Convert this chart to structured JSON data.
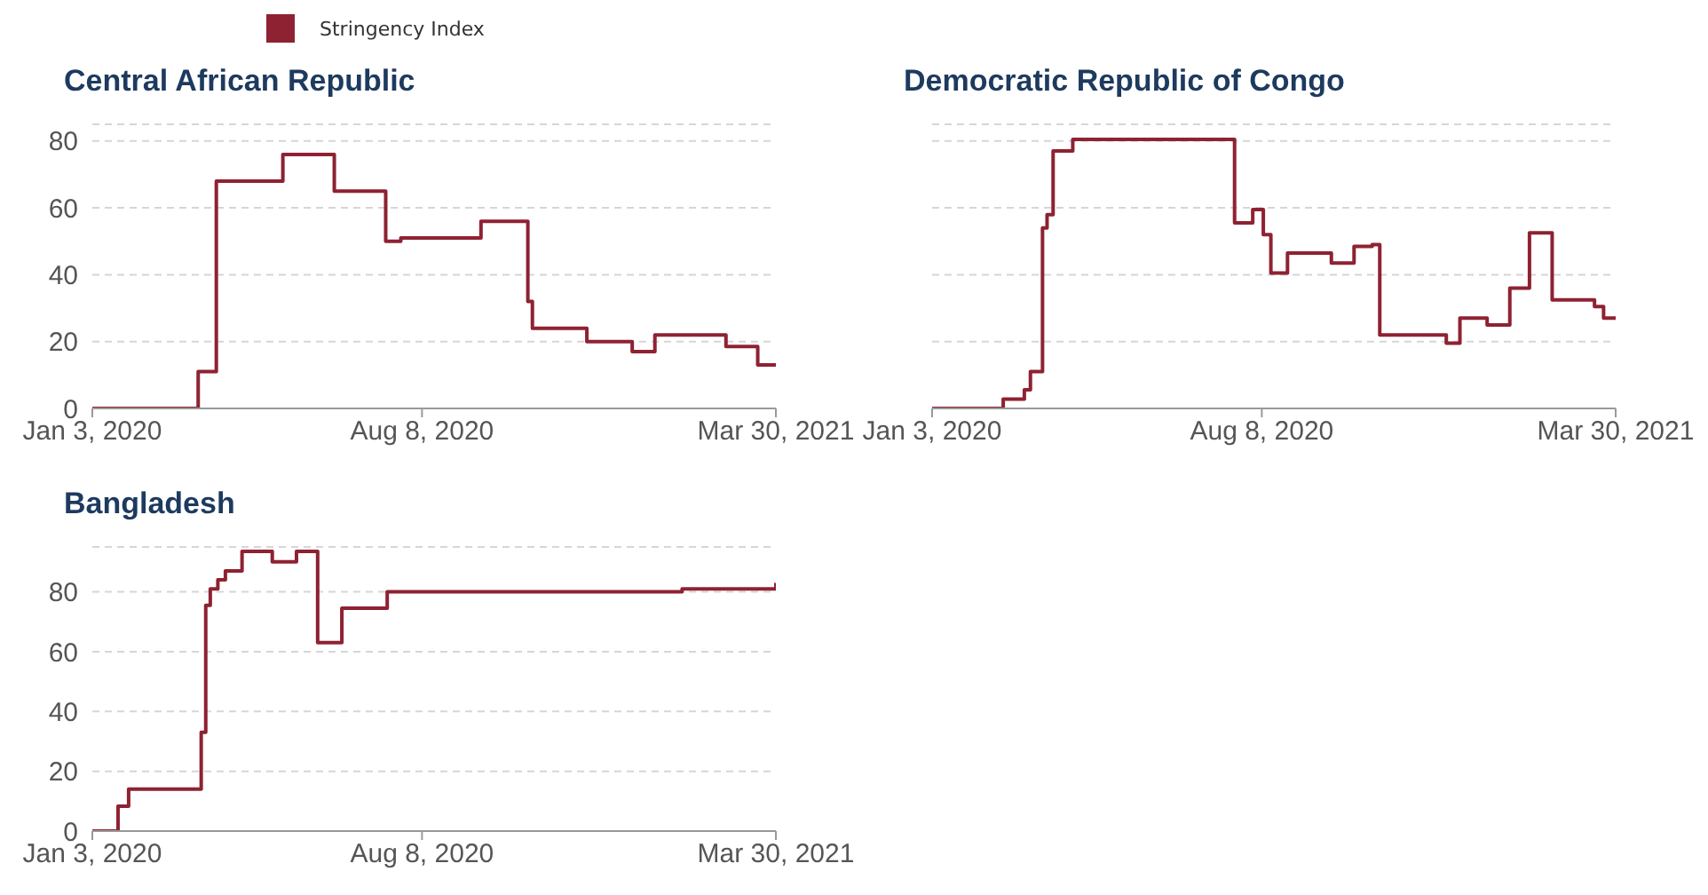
{
  "chart_data": [
    {
      "type": "step",
      "title": "Central African Republic",
      "legend": "top",
      "grid": "y",
      "series": [
        {
          "name": "Stringency Index",
          "color": "#8e2232",
          "x": [
            "2020-01-03",
            "2020-03-13",
            "2020-03-25",
            "2020-05-08",
            "2020-06-11",
            "2020-07-15",
            "2020-07-25",
            "2020-09-16",
            "2020-10-17",
            "2020-10-20",
            "2020-11-25",
            "2020-12-25",
            "2021-01-09",
            "2021-02-25",
            "2021-03-18",
            "2021-03-30"
          ],
          "values": [
            0,
            11,
            68,
            76,
            65,
            50,
            51,
            56,
            32,
            24,
            20,
            17,
            22,
            18.5,
            13,
            13
          ]
        }
      ],
      "xlim": [
        "2020-01-03",
        "2021-03-30"
      ],
      "xticks": [
        {
          "value": "2020-01-03",
          "label": "Jan 3, 2020"
        },
        {
          "value": "2020-08-08",
          "label": "Aug 8, 2020"
        },
        {
          "value": "2021-03-30",
          "label": "Mar 30, 2021"
        }
      ],
      "ylim": [
        0,
        85
      ],
      "yticks": [
        0,
        20,
        40,
        60,
        80
      ]
    },
    {
      "type": "step",
      "title": "Democratic Republic of Congo",
      "grid": "y",
      "tick_labels": "x",
      "series": [
        {
          "color": "#8e2232",
          "x": [
            "2020-01-03",
            "2020-02-19",
            "2020-03-04",
            "2020-03-08",
            "2020-03-16",
            "2020-03-19",
            "2020-03-23",
            "2020-04-05",
            "2020-07-21",
            "2020-08-02",
            "2020-08-09",
            "2020-08-14",
            "2020-08-25",
            "2020-09-23",
            "2020-10-08",
            "2020-10-20",
            "2020-10-25",
            "2020-12-08",
            "2020-12-17",
            "2021-01-04",
            "2021-01-19",
            "2021-02-01",
            "2021-02-16",
            "2021-03-16",
            "2021-03-22",
            "2021-03-30"
          ],
          "values": [
            0,
            2.8,
            5.6,
            11,
            54,
            58,
            77,
            80.5,
            55.5,
            59.5,
            52,
            40.5,
            46.5,
            43.5,
            48.5,
            49,
            22,
            19.5,
            27,
            25,
            36,
            52.5,
            32.5,
            30.5,
            27,
            27
          ]
        }
      ],
      "xlim": [
        "2020-01-03",
        "2021-03-30"
      ],
      "xticks": [
        {
          "value": "2020-01-03",
          "label": "Jan 3, 2020"
        },
        {
          "value": "2020-08-08",
          "label": "Aug 8, 2020"
        },
        {
          "value": "2021-03-30",
          "label": "Mar 30, 2021"
        }
      ],
      "ylim": [
        0,
        85
      ],
      "yticks": [
        0,
        20,
        40,
        60,
        80
      ]
    },
    {
      "type": "step",
      "title": "Bangladesh",
      "grid": "y",
      "series": [
        {
          "color": "#8e2232",
          "x": [
            "2020-01-03",
            "2020-01-20",
            "2020-01-27",
            "2020-03-15",
            "2020-03-18",
            "2020-03-21",
            "2020-03-26",
            "2020-03-31",
            "2020-04-11",
            "2020-05-01",
            "2020-05-17",
            "2020-05-31",
            "2020-06-16",
            "2020-07-16",
            "2021-01-27",
            "2021-03-29",
            "2021-03-30"
          ],
          "values": [
            0,
            8.3,
            14,
            33,
            75.5,
            81,
            84,
            87,
            93.5,
            90,
            93.5,
            63,
            74.5,
            80,
            81,
            81,
            83
          ]
        }
      ],
      "xlim": [
        "2020-01-03",
        "2021-03-30"
      ],
      "xticks": [
        {
          "value": "2020-01-03",
          "label": "Jan 3, 2020"
        },
        {
          "value": "2020-08-08",
          "label": "Aug 8, 2020"
        },
        {
          "value": "2021-03-30",
          "label": "Mar 30, 2021"
        }
      ],
      "ylim": [
        0,
        95
      ],
      "yticks": [
        0,
        20,
        40,
        60,
        80
      ]
    }
  ]
}
